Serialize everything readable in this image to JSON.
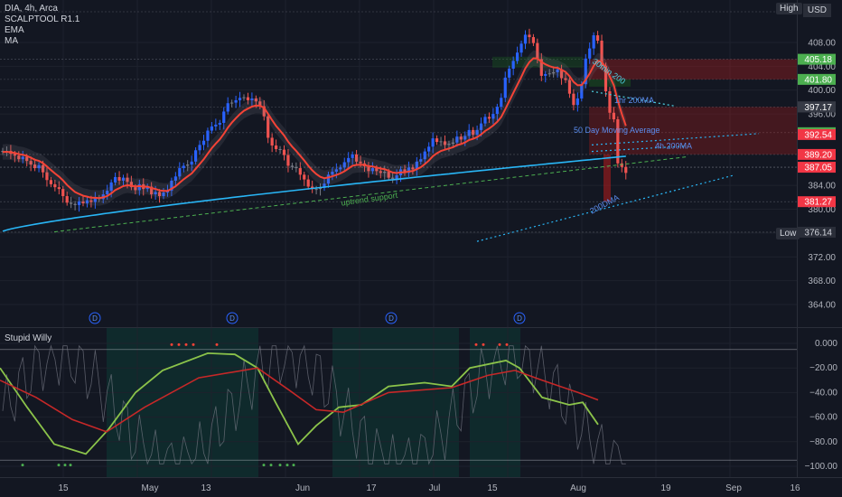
{
  "legend": {
    "symbol": "DIA, 4h, Arca",
    "indicators": [
      "SCALPTOOL R1.1",
      "EMA",
      "MA"
    ]
  },
  "oscillator": {
    "title": "Stupid Willy"
  },
  "currency": "USD",
  "high_label": "High",
  "low_label": "Low",
  "colors": {
    "background": "#131722",
    "up_candle": "#2962ff",
    "down_candle": "#ef5350",
    "neutral_candle": "#787b86",
    "ema_line": "#f44336",
    "ma_line": "#29b6f6",
    "osc_fast": "#8bc34a",
    "osc_slow": "#4caf50",
    "osc_red": "#c62828",
    "bull_zone": "#0c3a34"
  },
  "chart_data": {
    "type": "candlestick",
    "y_axis": {
      "ticks": [
        408.0,
        404.0,
        400.0,
        396.0,
        384.0,
        380.0,
        376.0,
        372.0,
        368.0,
        364.0
      ],
      "tick_labels": [
        "408.00",
        "404.00",
        "400.00",
        "396.00",
        "384.00",
        "380.00",
        "376.00",
        "372.00",
        "368.00",
        "364.00"
      ],
      "range": [
        360.5,
        411.5
      ]
    },
    "x_axis": {
      "tick_labels": [
        "15",
        "May",
        "13",
        "Jun",
        "17",
        "Jul",
        "15",
        "Aug",
        "19",
        "Sep",
        "16"
      ]
    },
    "price_tags": [
      {
        "value": 405.18,
        "label": "405.18",
        "color": "#4caf50"
      },
      {
        "value": 401.8,
        "label": "401.80",
        "color": "#4caf50"
      },
      {
        "value": 397.19,
        "label": "397.19",
        "color": "#363a45"
      },
      {
        "value": 397.17,
        "label": "397.17",
        "color": "#363a45"
      },
      {
        "value": 392.85,
        "label": "392.85",
        "color": "#4caf50"
      },
      {
        "value": 392.54,
        "label": "392.54",
        "color": "#f23645"
      },
      {
        "value": 389.2,
        "label": "389.20",
        "color": "#f23645"
      },
      {
        "value": 387.06,
        "label": "387.06",
        "color": "#363a45"
      },
      {
        "value": 387.05,
        "label": "387.05",
        "color": "#f23645"
      },
      {
        "value": 381.27,
        "label": "381.27",
        "color": "#f23645"
      }
    ],
    "high_value": 411.6,
    "low": {
      "value": 376.14,
      "label": "376.14"
    },
    "annotations": [
      "uptrend support",
      "50 Day Moving Average",
      "4h 200MA",
      "1hr 200MA",
      "200DMA",
      "30min 200"
    ],
    "dividend_markers": [
      "D",
      "D",
      "D",
      "D"
    ],
    "closes": [
      389.6,
      389.8,
      389.3,
      389.0,
      388.4,
      388.8,
      388.1,
      387.5,
      386.9,
      387.4,
      386.2,
      384.9,
      384.2,
      383.7,
      383.4,
      382.2,
      381.1,
      380.9,
      380.7,
      381.3,
      381.0,
      381.5,
      381.2,
      381.9,
      381.7,
      382.5,
      383.1,
      384.5,
      385.4,
      384.8,
      385.3,
      384.6,
      383.7,
      383.2,
      384.2,
      383.4,
      383.8,
      382.5,
      382.9,
      382.2,
      382.8,
      383.1,
      384.8,
      385.5,
      386.9,
      387.3,
      387.5,
      388.0,
      389.9,
      390.8,
      391.5,
      393.2,
      393.9,
      394.2,
      394.5,
      396.4,
      397.8,
      397.9,
      398.3,
      398.7,
      398.8,
      398.3,
      398.6,
      398.1,
      397.3,
      395.6,
      392.0,
      390.7,
      390.1,
      390.0,
      389.1,
      387.3,
      387.1,
      386.9,
      385.8,
      385.0,
      383.8,
      383.4,
      383.4,
      383.6,
      384.3,
      385.8,
      386.3,
      386.7,
      387.0,
      387.9,
      388.6,
      389.2,
      388.0,
      387.7,
      387.2,
      386.4,
      386.9,
      386.4,
      386.1,
      386.3,
      385.3,
      385.1,
      385.7,
      386.7,
      386.1,
      387.0,
      386.7,
      388.0,
      388.4,
      389.7,
      390.5,
      391.9,
      391.3,
      391.4,
      390.8,
      391.0,
      391.2,
      392.2,
      391.7,
      392.3,
      393.3,
      392.5,
      393.3,
      394.4,
      395.5,
      395.2,
      396.0,
      397.2,
      398.7,
      402.1,
      403.6,
      404.9,
      406.3,
      407.8,
      409.3,
      408.9,
      407.9,
      405.2,
      402.4,
      402.7,
      402.8,
      403.0,
      403.5,
      402.0,
      401.7,
      399.4,
      397.5,
      398.6,
      401.0,
      405.3,
      407.0,
      409.2,
      408.3,
      404.1,
      399.8,
      396.2,
      395.1,
      387.7,
      387.1,
      386.1
    ]
  }
}
